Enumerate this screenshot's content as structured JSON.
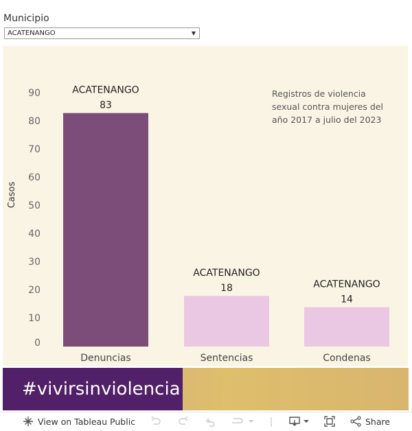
{
  "filter": {
    "label": "Municipio",
    "selected": "ACATENANGO"
  },
  "chart_data": {
    "type": "bar",
    "categories": [
      "Denuncias",
      "Sentencias",
      "Condenas"
    ],
    "values": [
      83,
      18,
      14
    ],
    "bar_labels": [
      "ACATENANGO",
      "ACATENANGO",
      "ACATENANGO"
    ],
    "bar_colors": [
      "#7b4d78",
      "#eac8e3",
      "#eac8e3"
    ],
    "ylabel": "Casos",
    "ylim": [
      0,
      90
    ],
    "yticks": [
      0,
      10,
      20,
      30,
      40,
      50,
      60,
      70,
      80,
      90
    ],
    "grid": false,
    "annotation": "Registros de violencia sexual contra mujeres del año 2017 a julio del 2023"
  },
  "banner": {
    "hashtag": "#vivirsinviolencia",
    "color": "#512068"
  },
  "toolbar": {
    "view_label": "View on Tableau Public",
    "share_label": "Share",
    "icons": [
      "tableau-icon",
      "undo-icon",
      "redo-icon",
      "revert-icon",
      "refresh-icon",
      "download-icon",
      "fullscreen-icon",
      "share-icon"
    ]
  }
}
